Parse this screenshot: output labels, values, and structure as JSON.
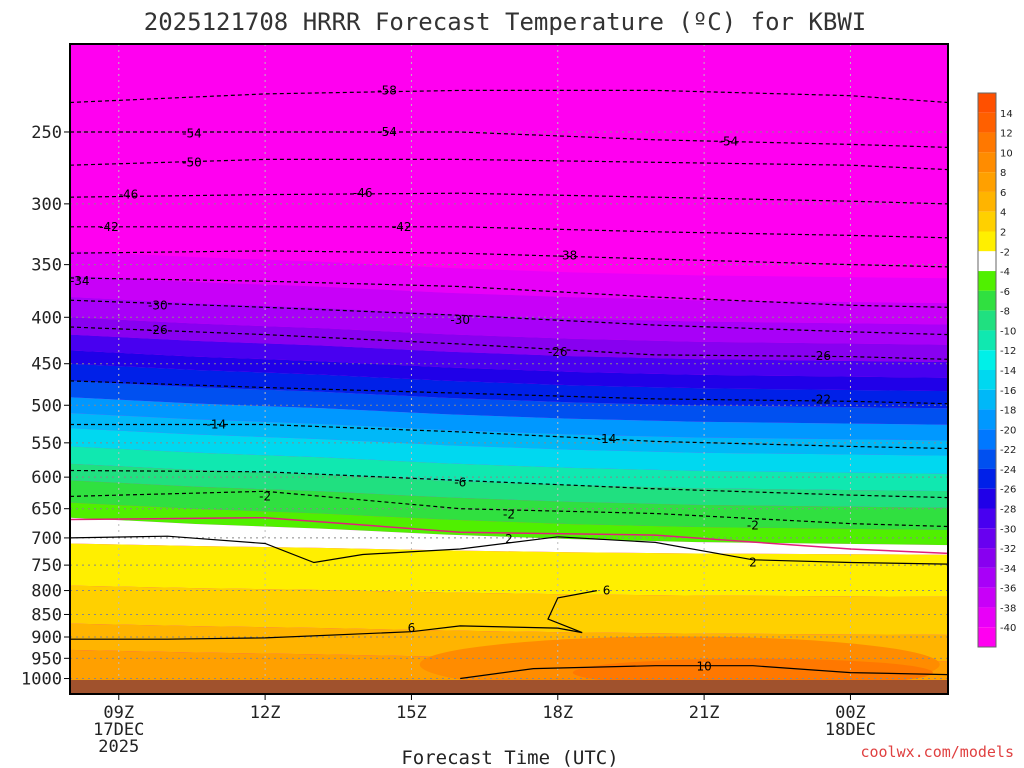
{
  "chart_data": {
    "type": "heatmap",
    "title": "2025121708 HRRR Forecast Temperature (ºC) for KBWI",
    "xlabel": "Forecast Time (UTC)",
    "x_tick_labels": [
      {
        "time": "09Z",
        "date": "17DEC",
        "year": "2025"
      },
      {
        "time": "12Z",
        "date": "",
        "year": ""
      },
      {
        "time": "15Z",
        "date": "",
        "year": ""
      },
      {
        "time": "18Z",
        "date": "",
        "year": ""
      },
      {
        "time": "21Z",
        "date": "",
        "year": ""
      },
      {
        "time": "00Z",
        "date": "18DEC",
        "year": ""
      }
    ],
    "x_hours": [
      0,
      3,
      6,
      9,
      12,
      15
    ],
    "x_range_hours": [
      -1,
      17
    ],
    "pressure_levels": [
      250,
      300,
      350,
      400,
      450,
      500,
      550,
      600,
      650,
      700,
      750,
      800,
      850,
      900,
      950,
      1000
    ],
    "y_scale": "log",
    "y_range_hPa": [
      200,
      1040
    ],
    "grid": true,
    "colorbar_labels": [
      "14",
      "12",
      "10",
      "8",
      "6",
      "4",
      "2",
      "-2",
      "-4",
      "-6",
      "-8",
      "-10",
      "-12",
      "-14",
      "-16",
      "-18",
      "-20",
      "-22",
      "-24",
      "-26",
      "-28",
      "-30",
      "-32",
      "-34",
      "-36",
      "-38",
      "-40"
    ],
    "colorbar_colors": [
      "#ff6000",
      "#ff7800",
      "#ff8c00",
      "#ffa000",
      "#ffb400",
      "#ffd000",
      "#ffef00",
      "#ffffff",
      "#50f000",
      "#30e040",
      "#20e080",
      "#10e8b0",
      "#00f0e8",
      "#00d8f0",
      "#00b8f8",
      "#0098ff",
      "#0078ff",
      "#0050f0",
      "#0020e8",
      "#2000e8",
      "#4800f0",
      "#6800f0",
      "#8800f0",
      "#a800f8",
      "#c800f8",
      "#e800f8",
      "#ff00f0"
    ],
    "colorbar_top_color": "#ff5000",
    "contours": [
      {
        "label": "-58",
        "points": [
          [
            -1,
            232
          ],
          [
            3,
            227
          ],
          [
            7,
            225
          ],
          [
            11,
            225
          ],
          [
            15,
            228
          ],
          [
            17,
            232
          ]
        ],
        "label_at": [
          [
            5.5,
            225
          ]
        ]
      },
      {
        "label": "-54",
        "points": [
          [
            -1,
            250
          ],
          [
            3,
            250
          ],
          [
            7,
            250
          ],
          [
            11,
            255
          ],
          [
            15,
            258
          ],
          [
            17,
            260
          ]
        ],
        "label_at": [
          [
            1.5,
            251
          ],
          [
            5.5,
            250
          ],
          [
            12.5,
            256
          ]
        ]
      },
      {
        "label": "-50",
        "points": [
          [
            -1,
            272
          ],
          [
            3,
            268
          ],
          [
            7,
            268
          ],
          [
            11,
            270
          ],
          [
            15,
            272
          ],
          [
            17,
            275
          ]
        ],
        "label_at": [
          [
            1.5,
            270
          ]
        ]
      },
      {
        "label": "-46",
        "points": [
          [
            -1,
            295
          ],
          [
            3,
            293
          ],
          [
            7,
            292
          ],
          [
            11,
            295
          ],
          [
            15,
            298
          ],
          [
            17,
            300
          ]
        ],
        "label_at": [
          [
            0.2,
            293
          ],
          [
            5.0,
            292
          ]
        ]
      },
      {
        "label": "-42",
        "points": [
          [
            -1,
            318
          ],
          [
            3,
            318
          ],
          [
            7,
            318
          ],
          [
            11,
            322
          ],
          [
            15,
            325
          ],
          [
            17,
            327
          ]
        ],
        "label_at": [
          [
            -0.2,
            318
          ],
          [
            5.8,
            318
          ]
        ]
      },
      {
        "label": "-38",
        "points": [
          [
            -1,
            340
          ],
          [
            3,
            338
          ],
          [
            7,
            340
          ],
          [
            11,
            345
          ],
          [
            15,
            350
          ],
          [
            17,
            352
          ]
        ],
        "label_at": [
          [
            9.2,
            342
          ]
        ]
      },
      {
        "label": "-34",
        "points": [
          [
            -1,
            362
          ],
          [
            3,
            365
          ],
          [
            7,
            370
          ],
          [
            11,
            380
          ],
          [
            15,
            388
          ],
          [
            17,
            390
          ]
        ],
        "label_at": [
          [
            -0.8,
            365
          ]
        ]
      },
      {
        "label": "-30",
        "points": [
          [
            -1,
            383
          ],
          [
            3,
            390
          ],
          [
            7,
            398
          ],
          [
            11,
            408
          ],
          [
            15,
            415
          ],
          [
            17,
            418
          ]
        ],
        "label_at": [
          [
            0.8,
            388
          ],
          [
            7.0,
            403
          ]
        ]
      },
      {
        "label": "-26",
        "points": [
          [
            -1,
            410
          ],
          [
            3,
            418
          ],
          [
            7,
            428
          ],
          [
            11,
            440
          ],
          [
            15,
            442
          ],
          [
            17,
            445
          ]
        ],
        "label_at": [
          [
            0.8,
            413
          ],
          [
            9.0,
            437
          ],
          [
            14.4,
            441
          ]
        ]
      },
      {
        "label": "-22",
        "points": [
          [
            -1,
            470
          ],
          [
            3,
            478
          ],
          [
            7,
            485
          ],
          [
            11,
            492
          ],
          [
            15,
            495
          ],
          [
            17,
            498
          ]
        ],
        "label_at": [
          [
            14.4,
            493
          ]
        ]
      },
      {
        "label": "-14",
        "points": [
          [
            -1,
            525
          ],
          [
            3,
            525
          ],
          [
            7,
            535
          ],
          [
            11,
            548
          ],
          [
            15,
            555
          ],
          [
            17,
            558
          ]
        ],
        "label_at": [
          [
            2.0,
            525
          ],
          [
            10.0,
            545
          ]
        ]
      },
      {
        "label": "-6",
        "points": [
          [
            -1,
            590
          ],
          [
            3,
            592
          ],
          [
            7,
            605
          ],
          [
            11,
            618
          ],
          [
            15,
            628
          ],
          [
            17,
            632
          ]
        ],
        "label_at": [
          [
            7.0,
            608
          ]
        ]
      },
      {
        "label": "-2",
        "points": [
          [
            -1,
            630
          ],
          [
            3,
            622
          ],
          [
            7,
            650
          ],
          [
            11,
            658
          ],
          [
            15,
            675
          ],
          [
            17,
            680
          ]
        ],
        "label_at": [
          [
            3.0,
            630
          ],
          [
            8.0,
            660
          ],
          [
            13.0,
            678
          ]
        ]
      },
      {
        "label": "2",
        "points": [
          [
            -1,
            700
          ],
          [
            1,
            697
          ],
          [
            3,
            710
          ],
          [
            4,
            745
          ],
          [
            5,
            730
          ],
          [
            7,
            720
          ],
          [
            9,
            698
          ],
          [
            11,
            708
          ],
          [
            13,
            740
          ],
          [
            15,
            745
          ],
          [
            17,
            748
          ]
        ],
        "label_at": [
          [
            8.0,
            702
          ],
          [
            13.0,
            745
          ]
        ]
      },
      {
        "label": "6",
        "points": [
          [
            -1,
            905
          ],
          [
            1,
            905
          ],
          [
            3,
            902
          ],
          [
            6,
            888
          ],
          [
            7,
            875
          ],
          [
            9,
            880
          ],
          [
            9.5,
            890
          ],
          [
            8.8,
            860
          ],
          [
            9.0,
            815
          ],
          [
            9.8,
            800
          ]
        ],
        "label_at": [
          [
            6.0,
            880
          ],
          [
            10.0,
            800
          ]
        ]
      },
      {
        "label": "10",
        "points": [
          [
            7,
            1000
          ],
          [
            8.5,
            975
          ],
          [
            11,
            968
          ],
          [
            13,
            968
          ],
          [
            15,
            985
          ],
          [
            17,
            990
          ]
        ],
        "label_at": [
          [
            12.0,
            970
          ]
        ]
      }
    ]
  },
  "credit": "coolwx.com/models"
}
